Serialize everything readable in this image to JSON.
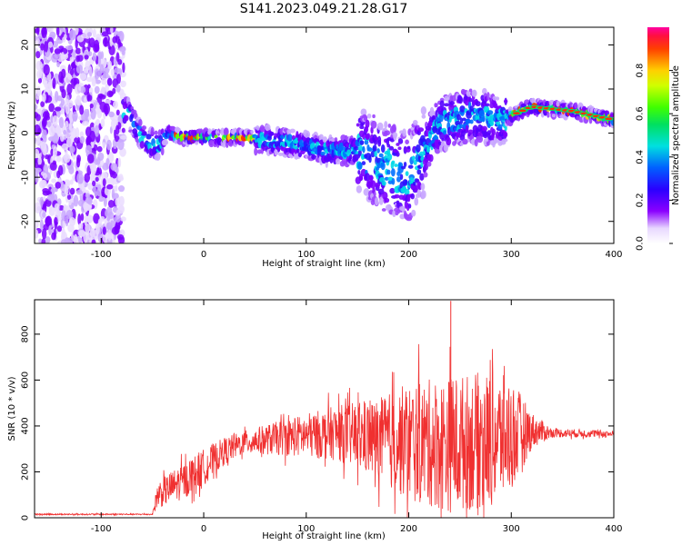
{
  "title": "S141.2023.049.21.28.G17",
  "chart_data": [
    {
      "type": "heatmap",
      "xlabel": "Height of straight line (km)",
      "ylabel": "Frequency (Hz)",
      "xlim": [
        -165,
        400
      ],
      "ylim": [
        -25,
        24
      ],
      "xticks": [
        -100,
        0,
        100,
        200,
        300,
        400
      ],
      "yticks": [
        -20,
        -10,
        0,
        10,
        20
      ],
      "colorbar": {
        "label": "Normalized spectral amplitude",
        "range": [
          0,
          1
        ],
        "ticks": [
          "0.0",
          "0.2",
          "0.4",
          "0.6",
          "0.8"
        ],
        "colormap": "white-violet-blue-cyan-green-yellow-red-magenta"
      },
      "ridge": {
        "x": [
          -75,
          -60,
          -45,
          -35,
          -20,
          0,
          40,
          80,
          120,
          150,
          180,
          200,
          230,
          260,
          290,
          320,
          360,
          400
        ],
        "y": [
          5,
          -1,
          -3,
          0,
          -1,
          -1,
          -1,
          -2,
          -4,
          -4,
          -8,
          -10,
          2,
          4,
          3,
          6,
          5,
          3
        ]
      },
      "noise_region": {
        "x_range": [
          -165,
          -78
        ],
        "y_range": [
          -25,
          24
        ]
      }
    },
    {
      "type": "line",
      "xlabel": "Height of straight line (km)",
      "ylabel": "SNR (10 * v/v)",
      "xlim": [
        -165,
        400
      ],
      "ylim": [
        0,
        950
      ],
      "xticks": [
        -100,
        0,
        100,
        200,
        300,
        400
      ],
      "yticks": [
        0,
        200,
        400,
        600,
        800
      ],
      "color": "#f03030",
      "envelope": {
        "x": [
          -165,
          -50,
          -45,
          -20,
          0,
          20,
          40,
          80,
          130,
          170,
          200,
          240,
          280,
          300,
          320,
          340,
          400
        ],
        "mean": [
          15,
          15,
          100,
          160,
          220,
          290,
          330,
          350,
          370,
          340,
          330,
          320,
          340,
          360,
          380,
          370,
          365
        ],
        "amplitude": [
          3,
          3,
          60,
          80,
          80,
          60,
          50,
          80,
          120,
          180,
          260,
          300,
          300,
          250,
          80,
          20,
          15
        ]
      },
      "peak": {
        "x": 241,
        "y": 945
      }
    }
  ]
}
